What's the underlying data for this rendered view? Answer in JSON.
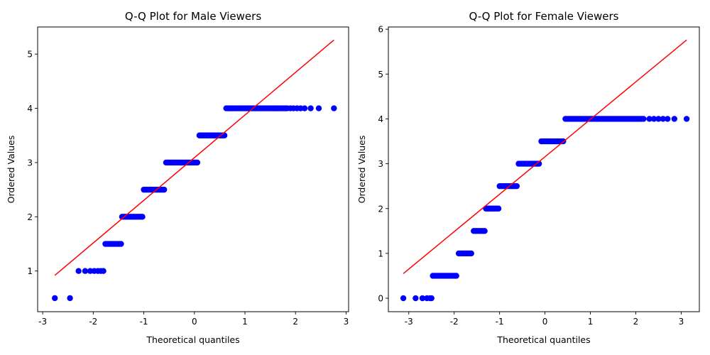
{
  "chart_data": [
    {
      "type": "scatter",
      "title": "Q-Q Plot for Male Viewers",
      "xlabel": "Theoretical quantiles",
      "ylabel": "Ordered Values",
      "xlim": [
        -3.1,
        3.05
      ],
      "ylim": [
        0.25,
        5.5
      ],
      "xticks": [
        -3,
        -2,
        -1,
        0,
        1,
        2,
        3
      ],
      "yticks": [
        1,
        2,
        3,
        4,
        5
      ],
      "grid": false,
      "marker_color": "#0000ff",
      "line_color": "#ff0000",
      "fit_line": {
        "x": [
          -2.76,
          2.76
        ],
        "y": [
          0.92,
          5.26
        ]
      },
      "points": [
        {
          "y": 0.5,
          "x_start": -2.76,
          "x_end": -2.46,
          "dense": false,
          "xs": [
            -2.76,
            -2.46
          ]
        },
        {
          "y": 1.0,
          "x_start": -2.29,
          "x_end": -1.8,
          "dense": false,
          "xs": [
            -2.29,
            -2.16,
            -2.06,
            -1.98,
            -1.91,
            -1.85,
            -1.8
          ]
        },
        {
          "y": 1.5,
          "x_start": -1.76,
          "x_end": -1.45,
          "dense": true
        },
        {
          "y": 2.0,
          "x_start": -1.43,
          "x_end": -1.02,
          "dense": true
        },
        {
          "y": 2.5,
          "x_start": -1.0,
          "x_end": -0.58,
          "dense": true
        },
        {
          "y": 3.0,
          "x_start": -0.56,
          "x_end": 0.08,
          "dense": true
        },
        {
          "y": 3.5,
          "x_start": 0.1,
          "x_end": 0.61,
          "dense": true
        },
        {
          "y": 4.0,
          "x_start": 0.63,
          "x_end": 1.85,
          "dense": true,
          "xs": [
            1.9,
            1.96,
            2.03,
            2.1,
            2.18,
            2.3,
            2.46,
            2.76
          ]
        }
      ]
    },
    {
      "type": "scatter",
      "title": "Q-Q Plot for Female Viewers",
      "xlabel": "Theoretical quantiles",
      "ylabel": "Ordered Values",
      "xlim": [
        -3.45,
        3.4
      ],
      "ylim": [
        -0.3,
        6.05
      ],
      "xticks": [
        -3,
        -2,
        -1,
        0,
        1,
        2,
        3
      ],
      "yticks": [
        0,
        1,
        2,
        3,
        4,
        5,
        6
      ],
      "grid": false,
      "marker_color": "#0000ff",
      "line_color": "#ff0000",
      "fit_line": {
        "x": [
          -3.12,
          3.12
        ],
        "y": [
          0.55,
          5.76
        ]
      },
      "points": [
        {
          "y": 0.0,
          "x_start": -3.12,
          "x_end": -2.5,
          "dense": false,
          "xs": [
            -3.12,
            -2.85,
            -2.7,
            -2.6,
            -2.53,
            -2.5
          ]
        },
        {
          "y": 0.5,
          "x_start": -2.47,
          "x_end": -1.92,
          "dense": true
        },
        {
          "y": 1.0,
          "x_start": -1.9,
          "x_end": -1.6,
          "dense": true
        },
        {
          "y": 1.5,
          "x_start": -1.57,
          "x_end": -1.32,
          "dense": true
        },
        {
          "y": 2.0,
          "x_start": -1.3,
          "x_end": -1.02,
          "dense": true
        },
        {
          "y": 2.5,
          "x_start": -1.0,
          "x_end": -0.6,
          "dense": true
        },
        {
          "y": 3.0,
          "x_start": -0.58,
          "x_end": -0.1,
          "dense": true
        },
        {
          "y": 3.5,
          "x_start": -0.08,
          "x_end": 0.43,
          "dense": true
        },
        {
          "y": 4.0,
          "x_start": 0.45,
          "x_end": 2.2,
          "dense": true,
          "xs": [
            2.3,
            2.4,
            2.5,
            2.6,
            2.7,
            2.85,
            3.12
          ]
        }
      ]
    }
  ]
}
